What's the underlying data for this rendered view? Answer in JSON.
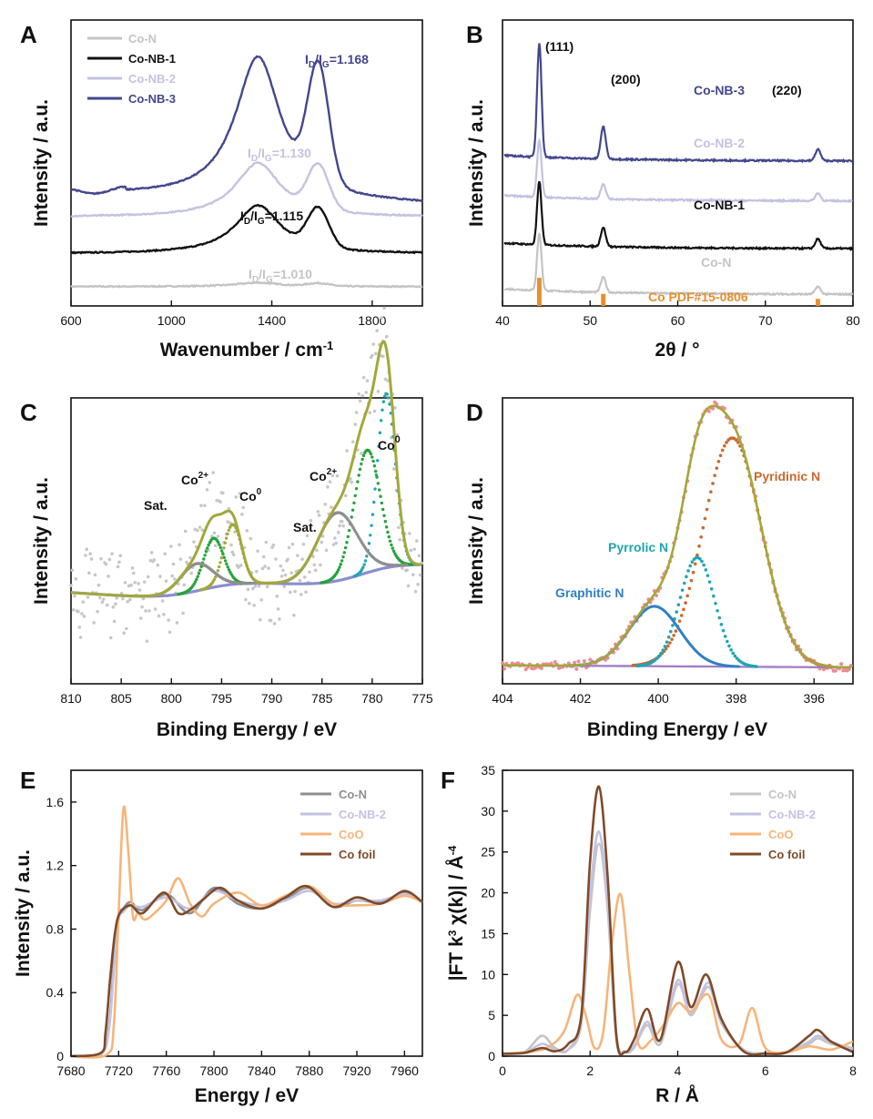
{
  "panels": [
    "A",
    "B",
    "C",
    "D",
    "E",
    "F"
  ],
  "colors": {
    "con": "#c4c4c4",
    "nb1": "#111111",
    "nb2": "#c4c2e2",
    "nb3": "#43478c",
    "coo": "#f5b57a",
    "cofoil": "#7f4a28",
    "pdf": "#e98f2e",
    "olive": "#a2a83a",
    "green": "#25a33a",
    "teal": "#1fa6b3",
    "gray": "#8e8e8e",
    "lavender": "#8a8ed0",
    "pink": "#f08a90",
    "brown": "#c9692e",
    "blue": "#2f7fc6",
    "purple": "#a47ec6",
    "dots": "#c7c7c7"
  },
  "chart_data": [
    {
      "panel": "A",
      "type": "line",
      "title": "",
      "xlabel": "Wavenumber / cm-1",
      "ylabel": "Intensity / a.u.",
      "xlim": [
        600,
        2000
      ],
      "xticks": [
        "600",
        "1000",
        "1400",
        "1800"
      ],
      "legend": "top-left",
      "series": [
        {
          "name": "Co-N",
          "color": "#c4c4c4",
          "offset": 0.02,
          "d": 0.02,
          "g": 0.015,
          "ratio": "ID/IG=1.010"
        },
        {
          "name": "Co-NB-1",
          "color": "#111111",
          "offset": 0.19,
          "d": 0.25,
          "g": 0.2,
          "ratio": "ID/IG=1.115"
        },
        {
          "name": "Co-NB-2",
          "color": "#c4c2e2",
          "offset": 0.38,
          "d": 0.28,
          "g": 0.23,
          "ratio": "ID/IG=1.130"
        },
        {
          "name": "Co-NB-3",
          "color": "#43478c",
          "offset": 0.5,
          "d": 0.74,
          "g": 0.6,
          "ratio": "ID/IG=1.168"
        }
      ]
    },
    {
      "panel": "B",
      "type": "line",
      "title": "",
      "xlabel": "2θ / °",
      "ylabel": "Intensity / a.u.",
      "xlim": [
        40,
        80
      ],
      "xticks": [
        "40",
        "50",
        "60",
        "70",
        "80"
      ],
      "peaks": [
        {
          "x": 44.2,
          "label": "(111)"
        },
        {
          "x": 51.5,
          "label": "(200)"
        },
        {
          "x": 76.0,
          "label": "(220)"
        }
      ],
      "series": [
        {
          "name": "Co-N",
          "color": "#c4c4c4",
          "base": 0.06,
          "h111": 0.3,
          "h200": 0.08,
          "h220": 0.04
        },
        {
          "name": "Co-NB-1",
          "color": "#111111",
          "base": 0.3,
          "h111": 0.33,
          "h200": 0.1,
          "h220": 0.05
        },
        {
          "name": "Co-NB-2",
          "color": "#c4c2e2",
          "base": 0.55,
          "h111": 0.3,
          "h200": 0.08,
          "h220": 0.04
        },
        {
          "name": "Co-NB-3",
          "color": "#43478c",
          "base": 0.76,
          "h111": 0.6,
          "h200": 0.17,
          "h220": 0.06
        }
      ],
      "reference": {
        "name": "Co PDF#15-0806",
        "color": "#e98f2e",
        "sticks": [
          {
            "x": 44.2,
            "h": 0.28
          },
          {
            "x": 51.5,
            "h": 0.12
          },
          {
            "x": 76.0,
            "h": 0.07
          }
        ]
      }
    },
    {
      "panel": "C",
      "type": "line",
      "title": "",
      "xlabel": "Binding Energy / eV",
      "ylabel": "Intensity / a.u.",
      "xlim": [
        810,
        775
      ],
      "xticks": [
        "810",
        "805",
        "800",
        "795",
        "790",
        "785",
        "780",
        "775"
      ],
      "components": [
        {
          "center": 778.6,
          "height": 0.64,
          "width": 0.9,
          "color": "#1fa6b3"
        },
        {
          "center": 780.5,
          "height": 0.45,
          "width": 1.3,
          "color": "#25a33a"
        },
        {
          "center": 783.5,
          "height": 0.25,
          "width": 2.0,
          "color": "#8e8e8e"
        },
        {
          "center": 793.9,
          "height": 0.22,
          "width": 0.9,
          "color": "#a2a83a"
        },
        {
          "center": 795.8,
          "height": 0.18,
          "width": 1.0,
          "color": "#25a33a"
        },
        {
          "center": 797.5,
          "height": 0.1,
          "width": 1.6,
          "color": "#8e8e8e"
        }
      ],
      "annotations": [
        "Co0",
        "Co2+",
        "Sat.",
        "Co0",
        "Co2+",
        "Sat."
      ]
    },
    {
      "panel": "D",
      "type": "line",
      "title": "",
      "xlabel": "Binding Energy / eV",
      "ylabel": "Intensity / a.u.",
      "xlim": [
        404,
        395
      ],
      "xticks": [
        "404",
        "402",
        "400",
        "398",
        "396"
      ],
      "components": [
        {
          "name": "Pyridinic N",
          "center": 398.1,
          "height": 0.84,
          "width": 0.75,
          "color": "#c9692e"
        },
        {
          "name": "Pyrrolic N",
          "center": 399.0,
          "height": 0.4,
          "width": 0.45,
          "color": "#1fa6b3"
        },
        {
          "name": "Graphitic N",
          "center": 400.1,
          "height": 0.22,
          "width": 0.65,
          "color": "#2f7fc6"
        }
      ]
    },
    {
      "panel": "E",
      "type": "line",
      "title": "",
      "xlabel": "Energy / eV",
      "ylabel": "Intensity / a.u.",
      "xlim": [
        7680,
        7975
      ],
      "ylim": [
        0,
        1.8
      ],
      "xticks": [
        "7680",
        "7720",
        "7760",
        "7800",
        "7840",
        "7880",
        "7920",
        "7960"
      ],
      "yticks": [
        "0",
        "0.4",
        "0.8",
        "1.2",
        "1.6"
      ],
      "legend": "top-right",
      "series": [
        {
          "name": "Co-N",
          "color": "#8e8e8e",
          "x": [
            7680,
            7705,
            7712,
            7716,
            7720,
            7724,
            7730,
            7740,
            7760,
            7780,
            7800,
            7820,
            7840,
            7860,
            7880,
            7900,
            7920,
            7940,
            7960,
            7975
          ],
          "y": [
            0,
            0.01,
            0.2,
            0.6,
            0.88,
            0.93,
            0.97,
            0.92,
            1.02,
            0.9,
            1.06,
            0.96,
            0.93,
            0.99,
            1.06,
            0.94,
            0.98,
            0.97,
            1.03,
            0.97
          ]
        },
        {
          "name": "Co-NB-2",
          "color": "#c4c2e2",
          "x": [
            7680,
            7705,
            7712,
            7716,
            7720,
            7724,
            7730,
            7740,
            7760,
            7780,
            7800,
            7820,
            7840,
            7860,
            7880,
            7900,
            7920,
            7940,
            7960,
            7975
          ],
          "y": [
            0,
            0.01,
            0.18,
            0.55,
            0.86,
            0.91,
            0.95,
            0.94,
            1.0,
            0.93,
            1.04,
            0.98,
            0.95,
            0.98,
            1.04,
            0.96,
            0.98,
            0.98,
            1.02,
            0.97
          ]
        },
        {
          "name": "CoO",
          "color": "#f5b57a",
          "x": [
            7680,
            7710,
            7716,
            7720,
            7724,
            7728,
            7732,
            7736,
            7742,
            7750,
            7760,
            7770,
            7780,
            7790,
            7800,
            7820,
            7840,
            7860,
            7880,
            7900,
            7920,
            7940,
            7960,
            7975
          ],
          "y": [
            0,
            0.01,
            0.2,
            0.9,
            1.56,
            1.3,
            0.88,
            0.9,
            0.86,
            0.9,
            0.98,
            1.12,
            0.96,
            0.88,
            0.96,
            1.03,
            0.95,
            1.01,
            1.07,
            0.96,
            0.95,
            0.96,
            1.01,
            0.97
          ]
        },
        {
          "name": "Co foil",
          "color": "#7f4a28",
          "x": [
            7680,
            7705,
            7709,
            7713,
            7717,
            7721,
            7730,
            7740,
            7758,
            7770,
            7780,
            7790,
            7805,
            7820,
            7840,
            7860,
            7878,
            7900,
            7920,
            7940,
            7960,
            7975
          ],
          "y": [
            0,
            0.02,
            0.15,
            0.5,
            0.78,
            0.9,
            0.95,
            0.9,
            1.03,
            0.9,
            0.92,
            0.98,
            1.06,
            0.98,
            0.93,
            1.0,
            1.07,
            0.94,
            1.0,
            0.96,
            1.04,
            0.97
          ]
        }
      ]
    },
    {
      "panel": "F",
      "type": "line",
      "title": "",
      "xlabel": "R / Å",
      "ylabel": "|FT k3 χ(k)| / Å-4",
      "xlim": [
        0,
        8
      ],
      "ylim": [
        0,
        35
      ],
      "xticks": [
        "0",
        "2",
        "4",
        "6",
        "8"
      ],
      "yticks": [
        "0",
        "5",
        "10",
        "15",
        "20",
        "25",
        "30",
        "35"
      ],
      "legend": "top-right",
      "series": [
        {
          "name": "Co-N",
          "color": "#c4c4c4",
          "x": [
            0,
            0.5,
            0.9,
            1.2,
            1.5,
            1.8,
            2.0,
            2.2,
            2.4,
            2.6,
            2.8,
            3.0,
            3.3,
            3.6,
            4.0,
            4.3,
            4.7,
            5.0,
            5.5,
            6.0,
            6.5,
            7.0,
            7.2,
            7.5,
            8.0
          ],
          "y": [
            0.3,
            0.5,
            2.5,
            1.0,
            0.8,
            4.0,
            18.0,
            26.0,
            18.0,
            2.0,
            0.5,
            1.0,
            3.8,
            1.5,
            8.8,
            5.0,
            8.5,
            4.0,
            0.8,
            0.3,
            0.5,
            1.5,
            2.2,
            1.5,
            1.0
          ]
        },
        {
          "name": "Co-NB-2",
          "color": "#c4c2e2",
          "x": [
            0,
            0.5,
            0.9,
            1.2,
            1.5,
            1.8,
            2.0,
            2.2,
            2.4,
            2.6,
            2.8,
            3.0,
            3.3,
            3.6,
            4.0,
            4.3,
            4.7,
            5.0,
            5.5,
            6.0,
            6.5,
            7.0,
            7.2,
            7.5,
            8.0
          ],
          "y": [
            0.3,
            0.4,
            1.5,
            0.8,
            0.8,
            5.0,
            20.0,
            27.5,
            19.0,
            2.5,
            0.6,
            1.2,
            4.2,
            2.0,
            9.3,
            5.2,
            9.0,
            4.2,
            0.7,
            0.4,
            0.5,
            1.8,
            2.5,
            1.8,
            0.8
          ]
        },
        {
          "name": "CoO",
          "color": "#f5b57a",
          "x": [
            0,
            0.5,
            1.0,
            1.4,
            1.7,
            1.9,
            2.1,
            2.3,
            2.5,
            2.7,
            2.9,
            3.1,
            3.4,
            3.7,
            4.0,
            4.3,
            4.7,
            5.0,
            5.4,
            5.7,
            6.0,
            6.5,
            7.0,
            7.5,
            8.0
          ],
          "y": [
            0.3,
            0.5,
            1.0,
            3.0,
            7.5,
            5.0,
            1.0,
            3.0,
            14.0,
            19.8,
            10.0,
            1.5,
            2.0,
            4.0,
            6.5,
            5.5,
            7.5,
            2.0,
            1.5,
            5.9,
            1.0,
            0.5,
            1.2,
            0.8,
            1.8
          ]
        },
        {
          "name": "Co foil",
          "color": "#7f4a28",
          "x": [
            0,
            0.5,
            0.9,
            1.2,
            1.5,
            1.8,
            2.0,
            2.2,
            2.4,
            2.6,
            2.8,
            3.0,
            3.3,
            3.6,
            4.0,
            4.3,
            4.65,
            5.0,
            5.5,
            6.0,
            6.5,
            7.0,
            7.2,
            7.5,
            8.0
          ],
          "y": [
            0.3,
            0.4,
            1.0,
            0.6,
            1.5,
            5.0,
            24.0,
            33.0,
            22.0,
            2.5,
            0.5,
            2.0,
            5.8,
            2.0,
            11.5,
            6.0,
            10.0,
            4.5,
            0.6,
            0.3,
            0.5,
            2.5,
            3.2,
            1.8,
            0.5
          ]
        }
      ]
    }
  ],
  "figure": {
    "A": {
      "label": "A",
      "xlabel": "Wavenumber / cm",
      "xlabel_sup": "-1",
      "ylabel": "Intensity / a.u.",
      "xticks": [
        "600",
        "1000",
        "1400",
        "1800"
      ],
      "legend": [
        "Co-N",
        "Co-NB-1",
        "Co-NB-2",
        "Co-NB-3"
      ],
      "ratios": [
        {
          "pre": "I",
          "sub1": "D",
          "mid": "/I",
          "sub2": "G",
          "val": "=1.168"
        },
        {
          "pre": "I",
          "sub1": "D",
          "mid": "/I",
          "sub2": "G",
          "val": "=1.130"
        },
        {
          "pre": "I",
          "sub1": "D",
          "mid": "/I",
          "sub2": "G",
          "val": "=1.115"
        },
        {
          "pre": "I",
          "sub1": "D",
          "mid": "/I",
          "sub2": "G",
          "val": "=1.010"
        }
      ]
    },
    "B": {
      "label": "B",
      "xlabel": "2θ / °",
      "ylabel": "Intensity / a.u.",
      "xticks": [
        "40",
        "50",
        "60",
        "70",
        "80"
      ],
      "peaks": [
        "(111)",
        "(200)",
        "(220)"
      ],
      "names": [
        "Co-NB-3",
        "Co-NB-2",
        "Co-NB-1",
        "Co-N"
      ],
      "ref": "Co PDF#15-0806"
    },
    "C": {
      "label": "C",
      "xlabel": "Binding Energy / eV",
      "ylabel": "Intensity / a.u.",
      "xticks": [
        "810",
        "805",
        "800",
        "795",
        "790",
        "785",
        "780",
        "775"
      ],
      "ann": [
        {
          "base": "Co",
          "sup": "0"
        },
        {
          "base": "Co",
          "sup": "2+"
        },
        {
          "base": "Sat.",
          "sup": ""
        },
        {
          "base": "Co",
          "sup": "0"
        },
        {
          "base": "Co",
          "sup": "2+"
        },
        {
          "base": "Sat.",
          "sup": ""
        }
      ]
    },
    "D": {
      "label": "D",
      "xlabel": "Binding Energy / eV",
      "ylabel": "Intensity / a.u.",
      "xticks": [
        "404",
        "402",
        "400",
        "398",
        "396"
      ],
      "names": [
        "Pyridinic N",
        "Pyrrolic N",
        "Graphitic N"
      ]
    },
    "E": {
      "label": "E",
      "xlabel": "Energy / eV",
      "ylabel": "Intensity / a.u.",
      "xticks": [
        "7680",
        "7720",
        "7760",
        "7800",
        "7840",
        "7880",
        "7920",
        "7960"
      ],
      "yticks": [
        "0",
        "0.4",
        "0.8",
        "1.2",
        "1.6"
      ],
      "legend": [
        "Co-N",
        "Co-NB-2",
        "CoO",
        "Co foil"
      ]
    },
    "F": {
      "label": "F",
      "xlabel": "R / Å",
      "ylabel_pre": "|FT k",
      "ylabel_sup1": "3",
      "ylabel_mid": " χ(k)| / Å",
      "ylabel_sup2": "-4",
      "xticks": [
        "0",
        "2",
        "4",
        "6",
        "8"
      ],
      "yticks": [
        "0",
        "5",
        "10",
        "15",
        "20",
        "25",
        "30",
        "35"
      ],
      "legend": [
        "Co-N",
        "Co-NB-2",
        "CoO",
        "Co foil"
      ]
    }
  }
}
